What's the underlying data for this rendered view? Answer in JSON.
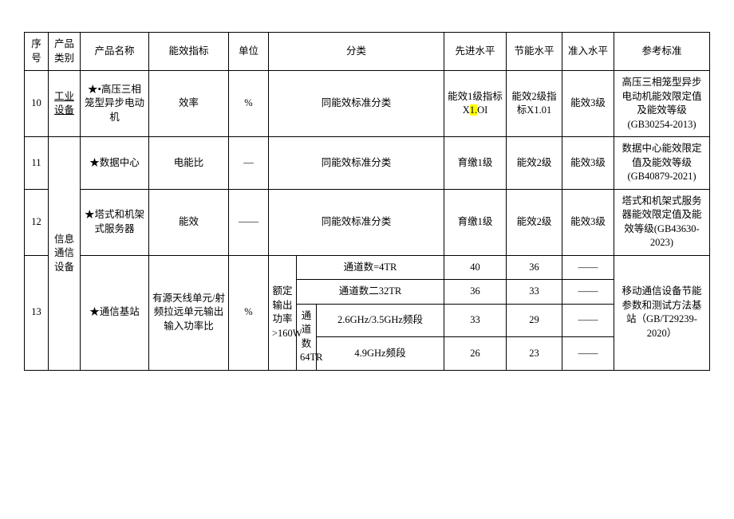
{
  "header": {
    "seq": "序号",
    "category": "产品类别",
    "name": "产品名称",
    "metric": "能效指标",
    "unit": "单位",
    "classification": "分类",
    "advanced": "先进水平",
    "saving": "节能水平",
    "entry": "准入水平",
    "standard": "参考标准"
  },
  "rows": {
    "r10": {
      "seq": "10",
      "category_top": "工业",
      "category_bottom": "设备",
      "name": "★•高压三相笼型异步电动机",
      "metric": "效率",
      "unit": "%",
      "classification": "同能效标准分类",
      "advanced_pre": "能效1级指标X",
      "advanced_hl": "1.",
      "advanced_post": "OI",
      "saving": "能效2级指标X1.01",
      "entry": "能效3级",
      "standard": "高压三相笼型异步电动机能效限定值及能效等级(GB30254-2013)"
    },
    "r11": {
      "seq": "11",
      "name": "★数据中心",
      "metric": "电能比",
      "unit": "—",
      "classification": "同能效标准分类",
      "advanced": "育缴1级",
      "saving": "能效2级",
      "entry": "能效3级",
      "standard": "数据中心能效限定值及能效等级(GB40879-2021)"
    },
    "r12": {
      "seq": "12",
      "name": "★塔式和机架式服务器",
      "metric": "能效",
      "unit": "——",
      "classification": "同能效标准分类",
      "advanced": "育缴1级",
      "saving": "能效2级",
      "entry": "能效3级",
      "standard": "塔式和机架式服务器能效限定值及能效等级(GB43630-2023)"
    },
    "r13": {
      "seq": "13",
      "category": "信息通信设备",
      "name": "★通信基站",
      "metric": "有源天线单元/射频拉远单元输出输入功率比",
      "unit": "%",
      "class_power": "额定输出功率>160W",
      "row1_class": "通道数=4TR",
      "row1_adv": "40",
      "row1_save": "36",
      "row1_entry": "——",
      "row2_class": "通道数二32TR",
      "row2_adv": "36",
      "row2_save": "33",
      "row2_entry": "——",
      "row3_chlabel": "通道数64TR",
      "row3_band": "2.6GHz/3.5GHz频段",
      "row3_adv": "33",
      "row3_save": "29",
      "row3_entry": "——",
      "row4_band": "4.9GHz频段",
      "row4_adv": "26",
      "row4_save": "23",
      "row4_entry": "——",
      "standard": "移动通信设备节能参数和测试方法基站（GB/T29239-2020）"
    }
  }
}
